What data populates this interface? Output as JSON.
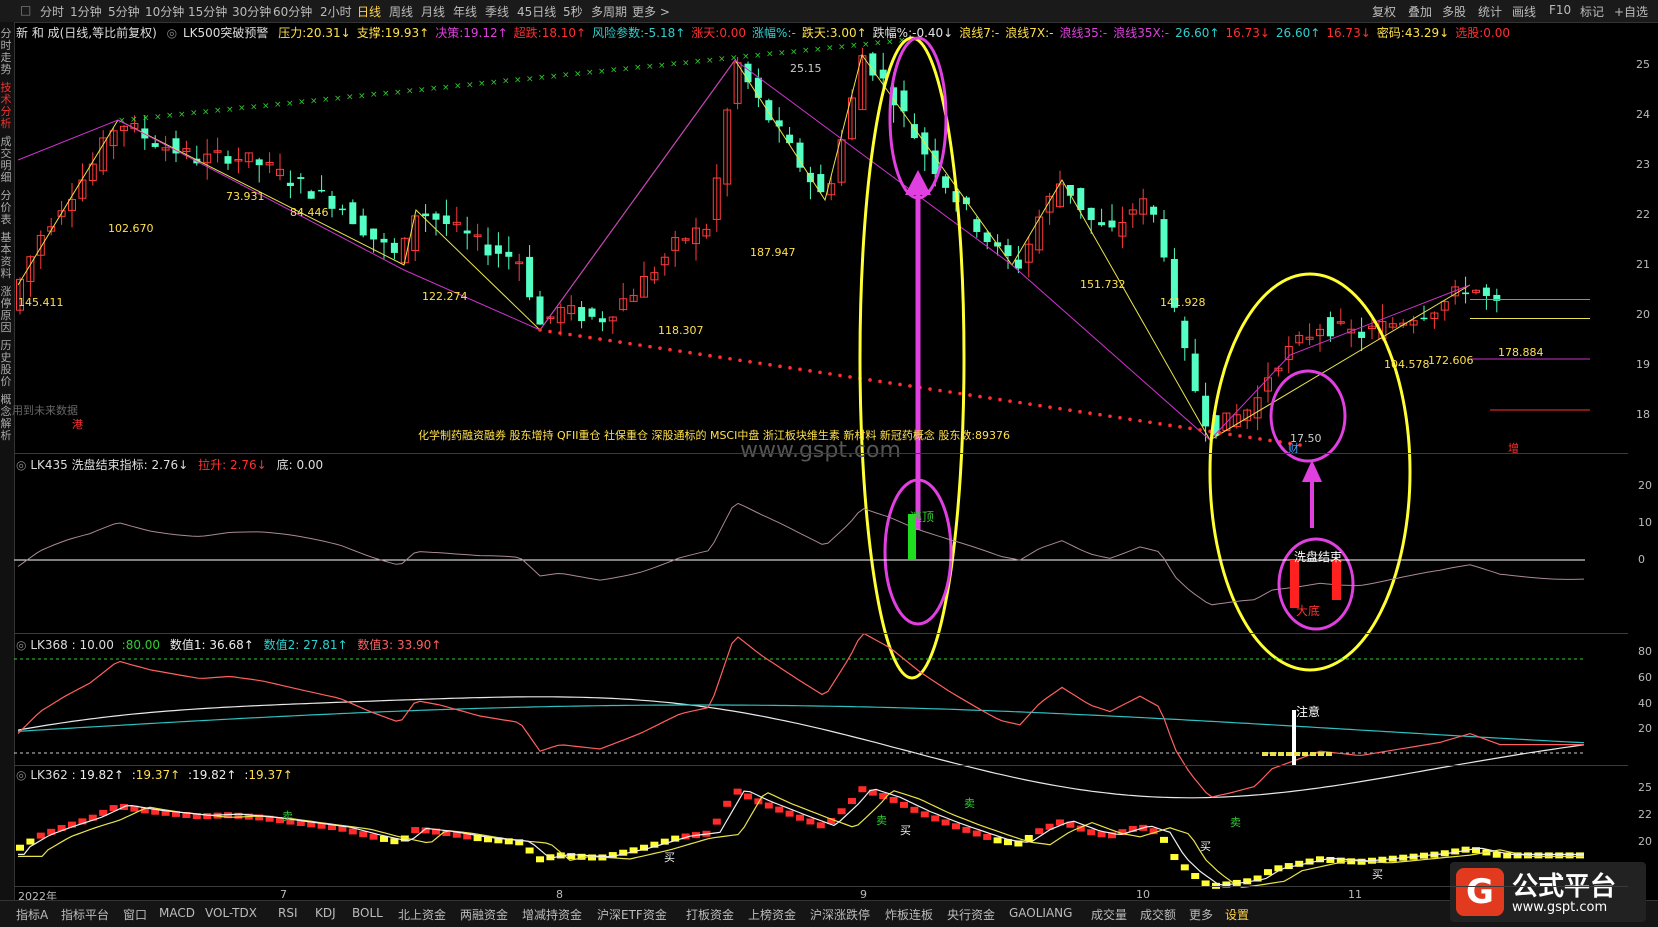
{
  "toolbar": {
    "periods": [
      "分时",
      "1分钟",
      "5分钟",
      "10分钟",
      "15分钟",
      "30分钟",
      "60分钟",
      "2小时",
      "日线",
      "周线",
      "月线",
      "年线",
      "季线",
      "45日线",
      "5秒",
      "多周期",
      "更多 >"
    ],
    "active_period": "日线",
    "right": [
      "复权",
      "叠加",
      "多股",
      "统计",
      "画线",
      "F10",
      "标记",
      "+自选"
    ]
  },
  "sidebar": [
    "分时走势",
    "技术分析",
    "成交明细",
    "分价表",
    "基本资料",
    "涨停原因",
    "历史股价",
    "概念解析"
  ],
  "stock": {
    "title": "新 和 成(日线,等比前复权)",
    "main_indicator": "LK500突破预警",
    "params": [
      {
        "k": "压力:",
        "v": "20.31↓",
        "color": "#ffe04a"
      },
      {
        "k": "支撑:",
        "v": "19.93↑",
        "color": "#ffe04a"
      },
      {
        "k": "决策:",
        "v": "19.12↑",
        "color": "#e040e0"
      },
      {
        "k": "超跌:",
        "v": "18.10↑",
        "color": "#ff3030"
      },
      {
        "k": "风险参数:",
        "v": "-5.18↑",
        "color": "#2fd0d0"
      },
      {
        "k": "涨天:",
        "v": "0.00",
        "color": "#ff3030"
      },
      {
        "k": "涨幅%:",
        "v": "-",
        "color": "#2fd0d0"
      },
      {
        "k": "跌天:",
        "v": "3.00↑",
        "color": "#ffe04a"
      },
      {
        "k": "跌幅%:",
        "v": "-0.40↓",
        "color": "#e0e0e0"
      },
      {
        "k": "浪线7:",
        "v": "-",
        "color": "#ffe04a"
      },
      {
        "k": "浪线7X:",
        "v": "-",
        "color": "#ffe04a"
      },
      {
        "k": "浪线35:",
        "v": "-",
        "color": "#e040e0"
      },
      {
        "k": "浪线35X:",
        "v": "-",
        "color": "#e040e0"
      },
      {
        "k": "",
        "v": "26.60↑",
        "color": "#2fd0d0"
      },
      {
        "k": "",
        "v": "16.73↓",
        "color": "#ff3030"
      },
      {
        "k": "",
        "v": "26.60↑",
        "color": "#2fd0d0"
      },
      {
        "k": "",
        "v": "16.73↓",
        "color": "#ff3030"
      },
      {
        "k": "密码:",
        "v": "43.29↓",
        "color": "#ffe04a"
      },
      {
        "k": "选股:",
        "v": "0.00",
        "color": "#ff3030"
      }
    ]
  },
  "main_chart": {
    "price_axis": [
      "25",
      "24",
      "23",
      "22",
      "21",
      "20",
      "19",
      "18"
    ],
    "price_range": [
      17.3,
      25.5
    ],
    "labels": [
      {
        "text": "145.411",
        "color": "#ffe04a"
      },
      {
        "text": "102.670",
        "color": "#ffe04a"
      },
      {
        "text": "73.931",
        "color": "#ffe04a"
      },
      {
        "text": "84.446",
        "color": "#ffe04a"
      },
      {
        "text": "122.274",
        "color": "#ffe04a"
      },
      {
        "text": "118.307",
        "color": "#ffe04a"
      },
      {
        "text": "187.947",
        "color": "#ffe04a"
      },
      {
        "text": "25.15",
        "color": "#cccccc"
      },
      {
        "text": "151.732",
        "color": "#ffe04a"
      },
      {
        "text": "141.928",
        "color": "#ffe04a"
      },
      {
        "text": "17.50",
        "color": "#cccccc"
      },
      {
        "text": "104.578",
        "color": "#ffe04a"
      },
      {
        "text": "172.606",
        "color": "#ffe04a"
      },
      {
        "text": "178.884",
        "color": "#ffe04a"
      }
    ],
    "concepts": "化学制药融资融券 股东增持 QFII重仓 社保重仓 深股通标的 MSCI中盘 浙江板块维生素 新材料 新冠药概念 股东数:89376",
    "future_note": "用到未来数据",
    "mark_gang": "港",
    "mark_cai": "财",
    "mark_zeng": "增",
    "watermark": "www.gspt.com"
  },
  "lk435": {
    "name": "LK435 洗盘结束指标:",
    "v1": "2.76↓",
    "k2": "拉升:",
    "v2": "2.76↓",
    "k3": "底:",
    "v3": "0.00",
    "axis": [
      "20",
      "10",
      "0"
    ],
    "top_label": "逃顶",
    "end_label": "洗盘结束",
    "bottom_label": "大底"
  },
  "lk368": {
    "name": "LK368 :",
    "v1": "10.00",
    "v2": ":80.00",
    "k3": "数值1:",
    "v3": "36.68↑",
    "k4": "数值2:",
    "v4": "27.81↑",
    "k5": "数值3:",
    "v5": "33.90↑",
    "axis": [
      "80",
      "60",
      "40",
      "20"
    ],
    "note": "注意"
  },
  "lk362": {
    "name": "LK362 :",
    "vals": [
      "19.82↑",
      "19.37↑",
      "19.82↑",
      "19.37↑"
    ],
    "axis": [
      "25",
      "22",
      "20"
    ],
    "buy": "买",
    "sell": "卖"
  },
  "date_axis": [
    "2022年",
    "7",
    "8",
    "9",
    "10",
    "11"
  ],
  "bottom_tabs": [
    "指标A",
    "指标平台",
    "窗口",
    "MACD",
    "VOL-TDX",
    "RSI",
    "KDJ",
    "BOLL",
    "北上资金",
    "两融资金",
    "增减持资金",
    "沪深ETF资金",
    "打板资金",
    "上榜资金",
    "沪深涨跌停",
    "炸板连板",
    "央行资金",
    "GAOLIANG",
    "成交量",
    "成交额",
    "更多",
    "设置"
  ],
  "logo": {
    "mark": "G",
    "title": "公式平台",
    "url": "www.gspt.com"
  }
}
